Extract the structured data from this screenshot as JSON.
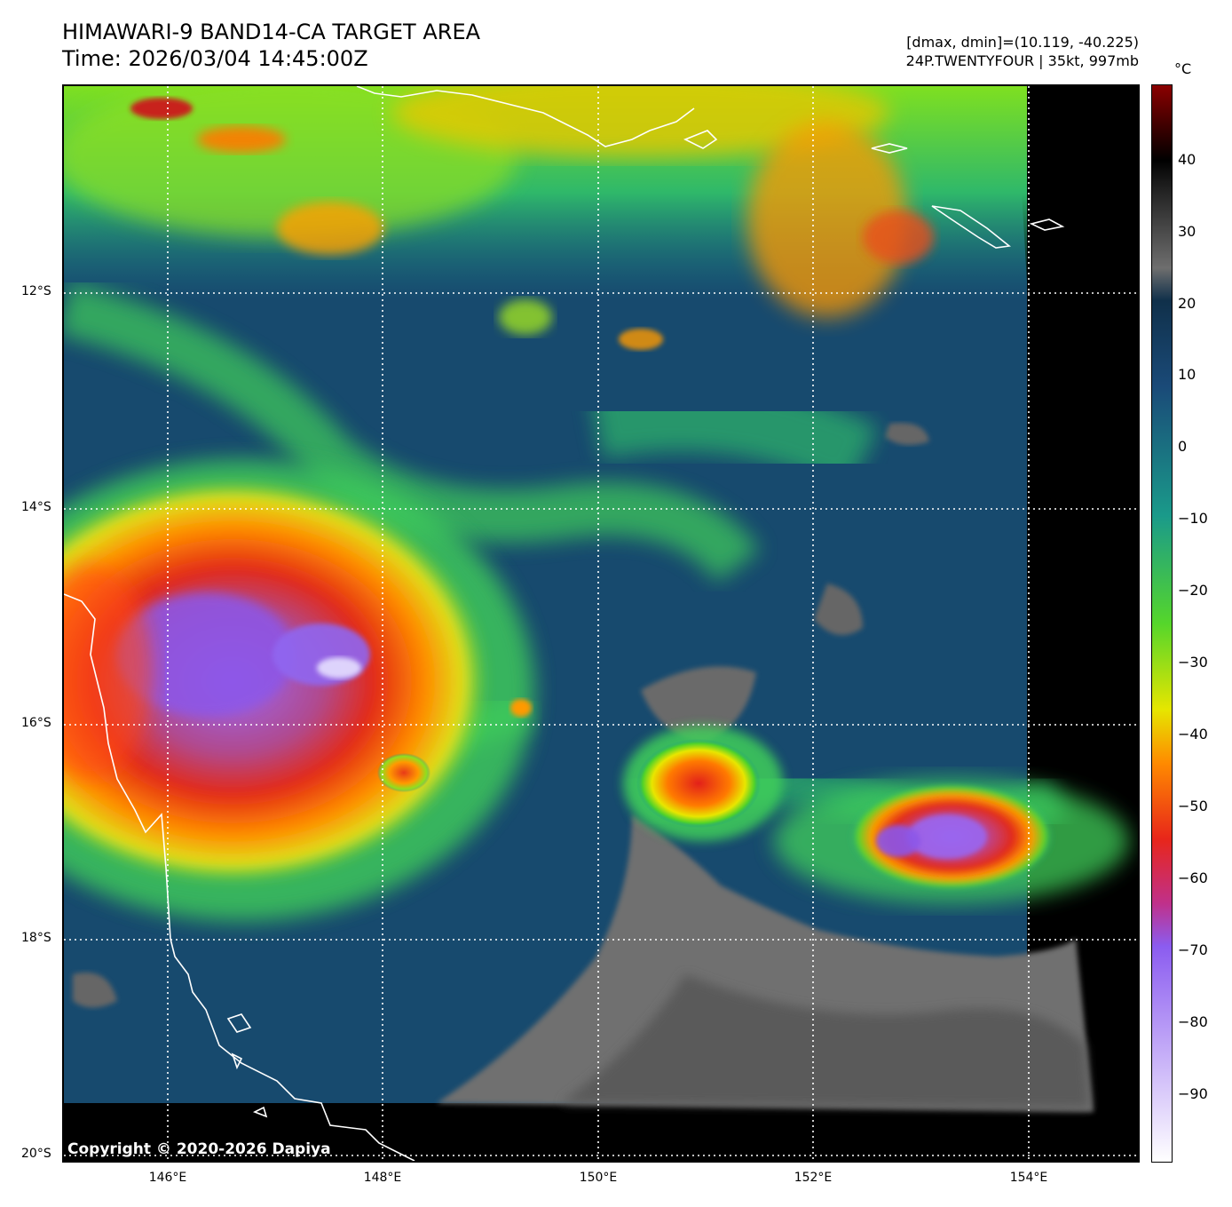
{
  "title": {
    "line1": "HIMAWARI-9 BAND14-CA TARGET AREA",
    "line2": "Time: 2026/03/04 14:45:00Z"
  },
  "meta": {
    "line1": "[dmax, dmin]=(10.119, -40.225)",
    "line2": "24P.TWENTYFOUR | 35kt, 997mb"
  },
  "map": {
    "lat_labels": [
      "12°S",
      "14°S",
      "16°S",
      "18°S",
      "20°S"
    ],
    "lon_labels": [
      "146°E",
      "148°E",
      "150°E",
      "152°E",
      "154°E"
    ]
  },
  "colorbar": {
    "unit": "°C",
    "ticks": [
      "40",
      "30",
      "20",
      "10",
      "0",
      "−10",
      "−20",
      "−30",
      "−40",
      "−50",
      "−60",
      "−70",
      "−80",
      "−90"
    ],
    "colors": [
      "#ffffff",
      "#8b5cf0",
      "#e8261a",
      "#ff8a00",
      "#e6e600",
      "#55d62b",
      "#1a9a8a",
      "#153e6b",
      "#6e6e6e",
      "#000000"
    ]
  },
  "copyright": "Copyright © 2020-2026 Dapiya"
}
